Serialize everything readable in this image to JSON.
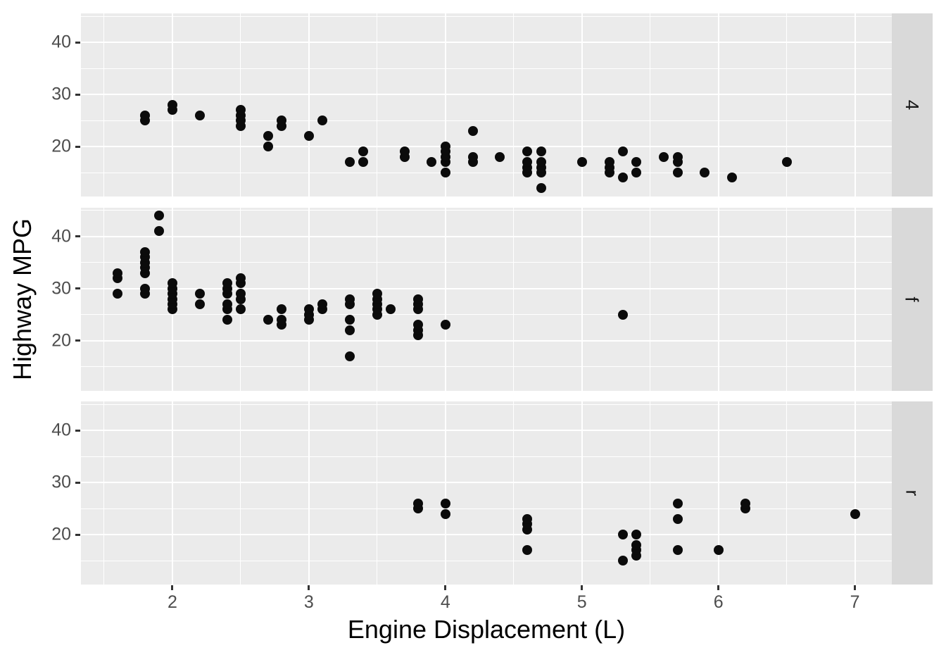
{
  "chart_data": {
    "type": "scatter",
    "title": "",
    "xlabel": "Engine Displacement (L)",
    "ylabel": "Highway MPG",
    "xlim": [
      1.33,
      7.27
    ],
    "ylim": [
      10.4,
      45.6
    ],
    "x_ticks": [
      2,
      3,
      4,
      5,
      6,
      7
    ],
    "x_tick_labels": [
      "2",
      "3",
      "4",
      "5",
      "6",
      "7"
    ],
    "y_ticks": [
      20,
      30,
      40
    ],
    "y_tick_labels": [
      "20",
      "30",
      "40"
    ],
    "x_minor_gridlines": [
      1.5,
      2.5,
      3.5,
      4.5,
      5.5,
      6.5
    ],
    "y_minor_gridlines": [
      15,
      25,
      35,
      45
    ],
    "grid": "on",
    "legend_position": "none",
    "faceting": {
      "layout": "rows",
      "strip_position": "right",
      "labels": [
        "4",
        "f",
        "r"
      ]
    },
    "facets": [
      {
        "label": "4",
        "points": [
          [
            1.8,
            25
          ],
          [
            1.8,
            26
          ],
          [
            2.0,
            27
          ],
          [
            2.0,
            28
          ],
          [
            2.2,
            26
          ],
          [
            2.5,
            24
          ],
          [
            2.5,
            25
          ],
          [
            2.5,
            26
          ],
          [
            2.5,
            27
          ],
          [
            2.7,
            20
          ],
          [
            2.7,
            22
          ],
          [
            2.8,
            24
          ],
          [
            2.8,
            25
          ],
          [
            3.0,
            22
          ],
          [
            3.1,
            25
          ],
          [
            3.3,
            17
          ],
          [
            3.4,
            17
          ],
          [
            3.4,
            19
          ],
          [
            3.7,
            18
          ],
          [
            3.7,
            19
          ],
          [
            3.9,
            17
          ],
          [
            4.0,
            15
          ],
          [
            4.0,
            17
          ],
          [
            4.0,
            18
          ],
          [
            4.0,
            19
          ],
          [
            4.0,
            20
          ],
          [
            4.2,
            17
          ],
          [
            4.2,
            18
          ],
          [
            4.2,
            23
          ],
          [
            4.4,
            18
          ],
          [
            4.6,
            15
          ],
          [
            4.6,
            16
          ],
          [
            4.6,
            17
          ],
          [
            4.6,
            19
          ],
          [
            4.7,
            12
          ],
          [
            4.7,
            15
          ],
          [
            4.7,
            16
          ],
          [
            4.7,
            17
          ],
          [
            4.7,
            19
          ],
          [
            5.0,
            17
          ],
          [
            5.2,
            15
          ],
          [
            5.2,
            16
          ],
          [
            5.2,
            17
          ],
          [
            5.3,
            14
          ],
          [
            5.3,
            19
          ],
          [
            5.4,
            15
          ],
          [
            5.4,
            17
          ],
          [
            5.6,
            18
          ],
          [
            5.7,
            15
          ],
          [
            5.7,
            17
          ],
          [
            5.7,
            18
          ],
          [
            5.9,
            15
          ],
          [
            6.1,
            14
          ],
          [
            6.5,
            17
          ]
        ]
      },
      {
        "label": "f",
        "points": [
          [
            1.6,
            29
          ],
          [
            1.6,
            32
          ],
          [
            1.6,
            33
          ],
          [
            1.8,
            29
          ],
          [
            1.8,
            30
          ],
          [
            1.8,
            33
          ],
          [
            1.8,
            34
          ],
          [
            1.8,
            35
          ],
          [
            1.8,
            36
          ],
          [
            1.8,
            37
          ],
          [
            1.9,
            41
          ],
          [
            1.9,
            44
          ],
          [
            2.0,
            26
          ],
          [
            2.0,
            27
          ],
          [
            2.0,
            28
          ],
          [
            2.0,
            29
          ],
          [
            2.0,
            30
          ],
          [
            2.0,
            31
          ],
          [
            2.2,
            27
          ],
          [
            2.2,
            29
          ],
          [
            2.4,
            24
          ],
          [
            2.4,
            26
          ],
          [
            2.4,
            27
          ],
          [
            2.4,
            29
          ],
          [
            2.4,
            30
          ],
          [
            2.4,
            31
          ],
          [
            2.5,
            26
          ],
          [
            2.5,
            28
          ],
          [
            2.5,
            29
          ],
          [
            2.5,
            31
          ],
          [
            2.5,
            32
          ],
          [
            2.7,
            24
          ],
          [
            2.8,
            23
          ],
          [
            2.8,
            24
          ],
          [
            2.8,
            26
          ],
          [
            3.0,
            24
          ],
          [
            3.0,
            25
          ],
          [
            3.0,
            26
          ],
          [
            3.1,
            26
          ],
          [
            3.1,
            27
          ],
          [
            3.3,
            17
          ],
          [
            3.3,
            22
          ],
          [
            3.3,
            24
          ],
          [
            3.3,
            27
          ],
          [
            3.3,
            28
          ],
          [
            3.5,
            25
          ],
          [
            3.5,
            26
          ],
          [
            3.5,
            27
          ],
          [
            3.5,
            28
          ],
          [
            3.5,
            29
          ],
          [
            3.6,
            26
          ],
          [
            3.8,
            21
          ],
          [
            3.8,
            22
          ],
          [
            3.8,
            23
          ],
          [
            3.8,
            26
          ],
          [
            3.8,
            27
          ],
          [
            3.8,
            28
          ],
          [
            4.0,
            23
          ],
          [
            5.3,
            25
          ]
        ]
      },
      {
        "label": "r",
        "points": [
          [
            3.8,
            25
          ],
          [
            3.8,
            26
          ],
          [
            4.0,
            24
          ],
          [
            4.0,
            26
          ],
          [
            4.6,
            17
          ],
          [
            4.6,
            21
          ],
          [
            4.6,
            22
          ],
          [
            4.6,
            23
          ],
          [
            5.3,
            15
          ],
          [
            5.3,
            20
          ],
          [
            5.4,
            16
          ],
          [
            5.4,
            17
          ],
          [
            5.4,
            18
          ],
          [
            5.4,
            20
          ],
          [
            5.7,
            17
          ],
          [
            5.7,
            23
          ],
          [
            5.7,
            26
          ],
          [
            6.0,
            17
          ],
          [
            6.2,
            25
          ],
          [
            6.2,
            26
          ],
          [
            7.0,
            24
          ]
        ]
      }
    ]
  },
  "style": {
    "panel_background": "#EBEBEB",
    "strip_background": "#D9D9D9",
    "gridline_color": "#FFFFFF",
    "point_color": "#0B0B0B",
    "tick_label_color": "#4D4D4D",
    "axis_title_color": "#000000",
    "strip_text_color": "#1A1A1A"
  }
}
